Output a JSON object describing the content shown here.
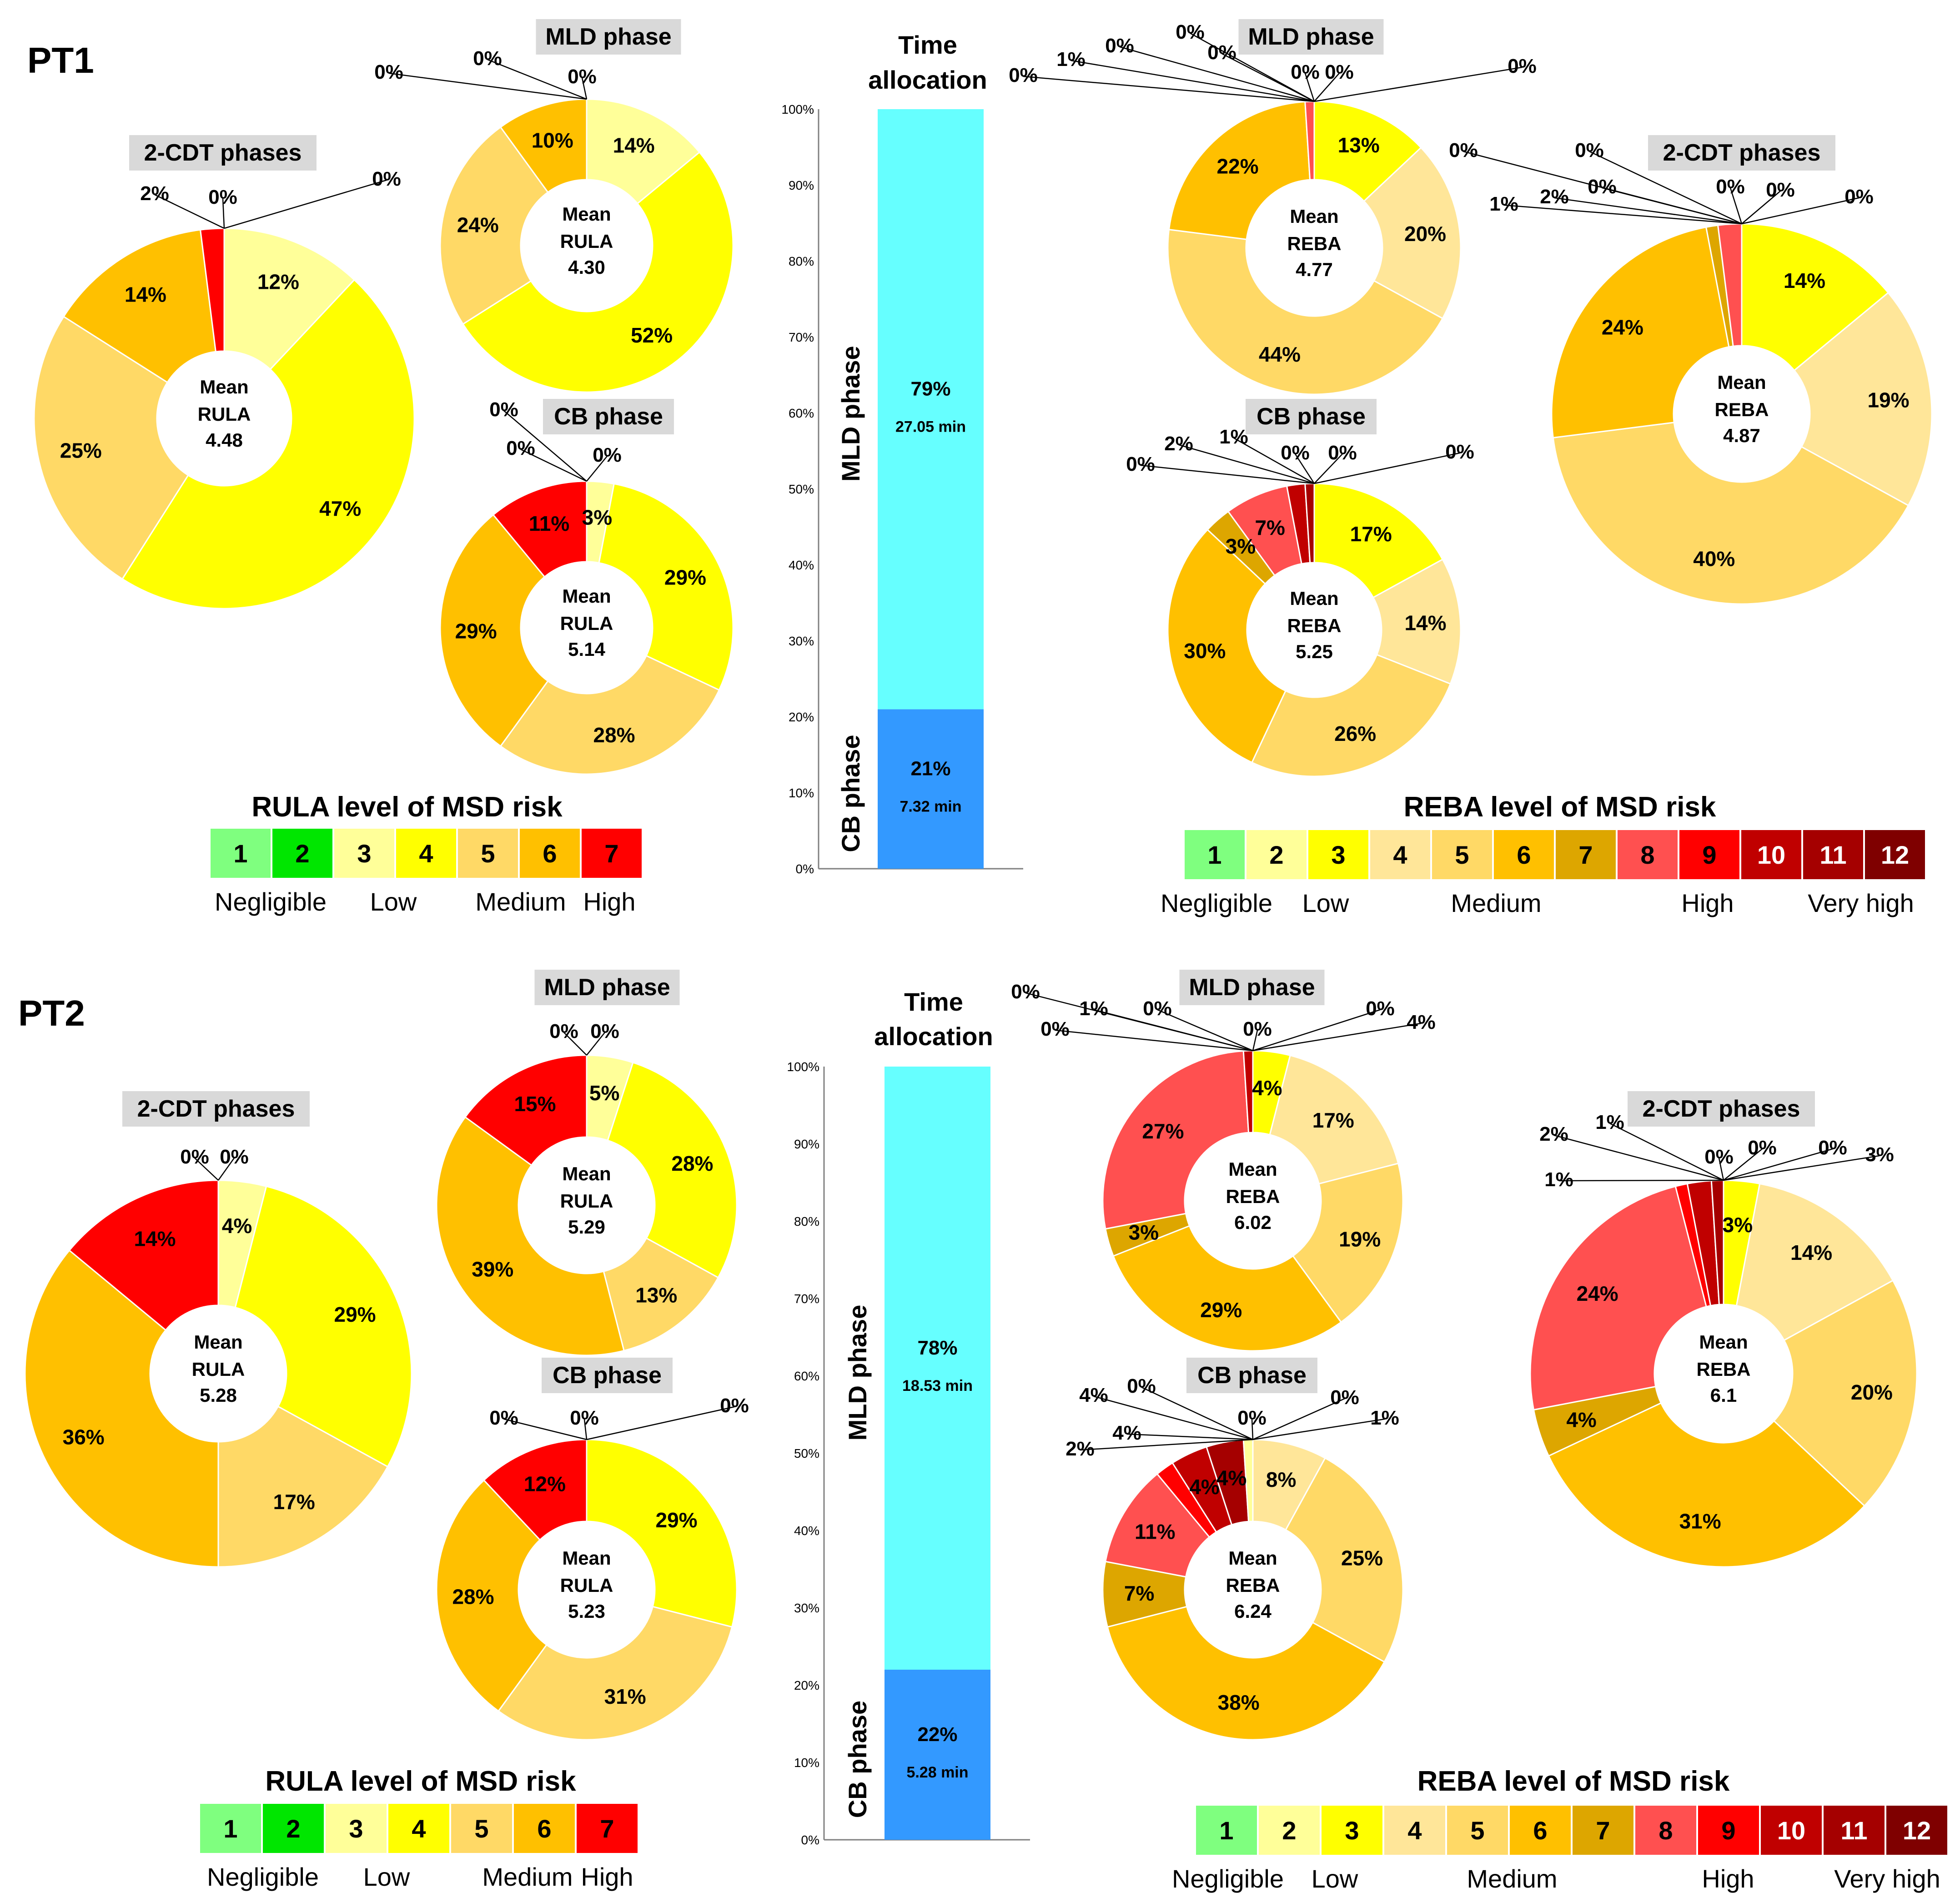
{
  "panels": [
    {
      "key": "pt1",
      "label": "PT1"
    },
    {
      "key": "pt2",
      "label": "PT2"
    }
  ],
  "colors": {
    "rula": {
      "1": "#7fff7f",
      "2": "#00e600",
      "3": "#ffff99",
      "4": "#ffff00",
      "5": "#ffd966",
      "6": "#ffc000",
      "7": "#ff0000"
    },
    "reba": {
      "1": "#7fff7f",
      "2": "#ffff99",
      "3": "#ffff00",
      "4": "#ffe699",
      "5": "#ffd966",
      "6": "#ffc000",
      "7": "#dda600",
      "8": "#ff5050",
      "9": "#ff0000",
      "10": "#c00000",
      "11": "#a50000",
      "12": "#7f0000"
    },
    "mld_bar": "#66ffff",
    "cb_bar": "#3399ff",
    "title_box": "#d9d9d9"
  },
  "legends": {
    "rula": {
      "title": "RULA level of MSD risk",
      "levels": [
        "1",
        "2",
        "3",
        "4",
        "5",
        "6",
        "7"
      ],
      "categories": [
        "Negligible",
        "Low",
        "Medium",
        "High"
      ]
    },
    "reba": {
      "title": "REBA level of MSD risk",
      "levels": [
        "1",
        "2",
        "3",
        "4",
        "5",
        "6",
        "7",
        "8",
        "9",
        "10",
        "11",
        "12"
      ],
      "categories": [
        "Negligible",
        "Low",
        "Medium",
        "High",
        "Very high"
      ]
    }
  },
  "time_allocation": {
    "title_line1": "Time",
    "title_line2": "allocation",
    "ticks": [
      "0%",
      "10%",
      "20%",
      "30%",
      "40%",
      "50%",
      "60%",
      "70%",
      "80%",
      "90%",
      "100%"
    ],
    "mld_label": "MLD phase",
    "cb_label": "CB phase"
  },
  "chart_data": [
    {
      "id": "pt1-rula-2cdt",
      "type": "pie",
      "title": "2-CDT phases",
      "center": [
        "Mean",
        "RULA",
        "4.48"
      ],
      "slices": [
        {
          "level": "3",
          "value": 12,
          "label": "12%"
        },
        {
          "level": "4",
          "value": 47,
          "label": "47%"
        },
        {
          "level": "5",
          "value": 25,
          "label": "25%"
        },
        {
          "level": "6",
          "value": 14,
          "label": "14%"
        },
        {
          "level": "7",
          "value": 2,
          "label": "2%"
        },
        {
          "level": "1",
          "value": 0,
          "label": "0%"
        },
        {
          "level": "2",
          "value": 0,
          "label": "0%"
        }
      ]
    },
    {
      "id": "pt1-rula-mld",
      "type": "pie",
      "title": "MLD phase",
      "center": [
        "Mean",
        "RULA",
        "4.30"
      ],
      "slices": [
        {
          "level": "3",
          "value": 14,
          "label": "14%"
        },
        {
          "level": "4",
          "value": 52,
          "label": "52%"
        },
        {
          "level": "5",
          "value": 24,
          "label": "24%"
        },
        {
          "level": "6",
          "value": 10,
          "label": "10%"
        },
        {
          "level": "7",
          "value": 0,
          "label": "0%"
        },
        {
          "level": "1",
          "value": 0,
          "label": "0%"
        },
        {
          "level": "2",
          "value": 0,
          "label": "0%"
        }
      ]
    },
    {
      "id": "pt1-rula-cb",
      "type": "pie",
      "title": "CB phase",
      "center": [
        "Mean",
        "RULA",
        "5.14"
      ],
      "slices": [
        {
          "level": "3",
          "value": 3,
          "label": "3%"
        },
        {
          "level": "4",
          "value": 29,
          "label": "29%"
        },
        {
          "level": "5",
          "value": 28,
          "label": "28%"
        },
        {
          "level": "6",
          "value": 29,
          "label": "29%"
        },
        {
          "level": "7",
          "value": 11,
          "label": "11%"
        },
        {
          "level": "1",
          "value": 0,
          "label": "0%"
        },
        {
          "level": "2",
          "value": 0,
          "label": "0%"
        }
      ]
    },
    {
      "id": "pt1-time",
      "type": "bar",
      "stacked": true,
      "ylim": [
        0,
        100
      ],
      "segments": [
        {
          "name": "CB phase",
          "value": 21,
          "label": "21%",
          "duration": "7.32 min"
        },
        {
          "name": "MLD phase",
          "value": 79,
          "label": "79%",
          "duration": "27.05 min"
        }
      ]
    },
    {
      "id": "pt1-reba-mld",
      "type": "pie",
      "title": "MLD phase",
      "center": [
        "Mean",
        "REBA",
        "4.77"
      ],
      "slices": [
        {
          "level": "3",
          "value": 13,
          "label": "13%"
        },
        {
          "level": "4",
          "value": 20,
          "label": "20%"
        },
        {
          "level": "5",
          "value": 44,
          "label": "44%"
        },
        {
          "level": "6",
          "value": 22,
          "label": "22%"
        },
        {
          "level": "7",
          "value": 0,
          "label": "0%"
        },
        {
          "level": "8",
          "value": 1,
          "label": "1%"
        },
        {
          "level": "9",
          "value": 0,
          "label": "0%"
        },
        {
          "level": "10",
          "value": 0,
          "label": "0%"
        },
        {
          "level": "11",
          "value": 0,
          "label": "0%"
        },
        {
          "level": "12",
          "value": 0,
          "label": "0%"
        },
        {
          "level": "1",
          "value": 0,
          "label": "0%"
        },
        {
          "level": "2",
          "value": 0,
          "label": "0%"
        }
      ]
    },
    {
      "id": "pt1-reba-cb",
      "type": "pie",
      "title": "CB phase",
      "center": [
        "Mean",
        "REBA",
        "5.25"
      ],
      "slices": [
        {
          "level": "3",
          "value": 17,
          "label": "17%"
        },
        {
          "level": "4",
          "value": 14,
          "label": "14%"
        },
        {
          "level": "5",
          "value": 26,
          "label": "26%"
        },
        {
          "level": "6",
          "value": 30,
          "label": "30%"
        },
        {
          "level": "7",
          "value": 3,
          "label": "3%"
        },
        {
          "level": "8",
          "value": 7,
          "label": "7%"
        },
        {
          "level": "9",
          "value": 0,
          "label": "0%"
        },
        {
          "level": "10",
          "value": 2,
          "label": "2%"
        },
        {
          "level": "11",
          "value": 1,
          "label": "1%"
        },
        {
          "level": "12",
          "value": 0,
          "label": "0%"
        },
        {
          "level": "1",
          "value": 0,
          "label": "0%"
        },
        {
          "level": "2",
          "value": 0,
          "label": "0%"
        }
      ]
    },
    {
      "id": "pt1-reba-2cdt",
      "type": "pie",
      "title": "2-CDT phases",
      "center": [
        "Mean",
        "REBA",
        "4.87"
      ],
      "slices": [
        {
          "level": "3",
          "value": 14,
          "label": "14%"
        },
        {
          "level": "4",
          "value": 19,
          "label": "19%"
        },
        {
          "level": "5",
          "value": 40,
          "label": "40%"
        },
        {
          "level": "6",
          "value": 24,
          "label": "24%"
        },
        {
          "level": "7",
          "value": 1,
          "label": "1%"
        },
        {
          "level": "8",
          "value": 2,
          "label": "2%"
        },
        {
          "level": "9",
          "value": 0,
          "label": "0%"
        },
        {
          "level": "10",
          "value": 0,
          "label": "0%"
        },
        {
          "level": "11",
          "value": 0,
          "label": "0%"
        },
        {
          "level": "12",
          "value": 0,
          "label": "0%"
        },
        {
          "level": "1",
          "value": 0,
          "label": "0%"
        },
        {
          "level": "2",
          "value": 0,
          "label": "0%"
        }
      ]
    },
    {
      "id": "pt2-rula-2cdt",
      "type": "pie",
      "title": "2-CDT phases",
      "center": [
        "Mean",
        "RULA",
        "5.28"
      ],
      "slices": [
        {
          "level": "3",
          "value": 4,
          "label": "4%"
        },
        {
          "level": "4",
          "value": 29,
          "label": "29%"
        },
        {
          "level": "5",
          "value": 17,
          "label": "17%"
        },
        {
          "level": "6",
          "value": 36,
          "label": "36%"
        },
        {
          "level": "7",
          "value": 14,
          "label": "14%"
        },
        {
          "level": "1",
          "value": 0,
          "label": "0%"
        },
        {
          "level": "2",
          "value": 0,
          "label": "0%"
        }
      ]
    },
    {
      "id": "pt2-rula-mld",
      "type": "pie",
      "title": "MLD phase",
      "center": [
        "Mean",
        "RULA",
        "5.29"
      ],
      "slices": [
        {
          "level": "3",
          "value": 5,
          "label": "5%"
        },
        {
          "level": "4",
          "value": 28,
          "label": "28%"
        },
        {
          "level": "5",
          "value": 13,
          "label": "13%"
        },
        {
          "level": "6",
          "value": 39,
          "label": "39%"
        },
        {
          "level": "7",
          "value": 15,
          "label": "15%"
        },
        {
          "level": "1",
          "value": 0,
          "label": "0%"
        },
        {
          "level": "2",
          "value": 0,
          "label": "0%"
        }
      ]
    },
    {
      "id": "pt2-rula-cb",
      "type": "pie",
      "title": "CB phase",
      "center": [
        "Mean",
        "RULA",
        "5.23"
      ],
      "slices": [
        {
          "level": "3",
          "value": 0,
          "label": "0%"
        },
        {
          "level": "4",
          "value": 29,
          "label": "29%"
        },
        {
          "level": "5",
          "value": 31,
          "label": "31%"
        },
        {
          "level": "6",
          "value": 28,
          "label": "28%"
        },
        {
          "level": "7",
          "value": 12,
          "label": "12%"
        },
        {
          "level": "1",
          "value": 0,
          "label": "0%"
        },
        {
          "level": "2",
          "value": 0,
          "label": "0%"
        }
      ]
    },
    {
      "id": "pt2-time",
      "type": "bar",
      "stacked": true,
      "ylim": [
        0,
        100
      ],
      "segments": [
        {
          "name": "CB phase",
          "value": 22,
          "label": "22%",
          "duration": "5.28 min"
        },
        {
          "name": "MLD phase",
          "value": 78,
          "label": "78%",
          "duration": "18.53 min"
        }
      ]
    },
    {
      "id": "pt2-reba-mld",
      "type": "pie",
      "title": "MLD phase",
      "center": [
        "Mean",
        "REBA",
        "6.02"
      ],
      "slices": [
        {
          "level": "2",
          "value": 0,
          "label": "0%"
        },
        {
          "level": "3",
          "value": 4,
          "label": "4%"
        },
        {
          "level": "4",
          "value": 17,
          "label": "17%"
        },
        {
          "level": "5",
          "value": 19,
          "label": "19%"
        },
        {
          "level": "6",
          "value": 29,
          "label": "29%"
        },
        {
          "level": "7",
          "value": 3,
          "label": "3%"
        },
        {
          "level": "8",
          "value": 27,
          "label": "27%"
        },
        {
          "level": "9",
          "value": 0,
          "label": "0%"
        },
        {
          "level": "10",
          "value": 1,
          "label": "1%"
        },
        {
          "level": "11",
          "value": 0,
          "label": "0%"
        },
        {
          "level": "12",
          "value": 0,
          "label": "0%"
        },
        {
          "level": "1",
          "value": 0,
          "label": "0%"
        }
      ]
    },
    {
      "id": "pt2-reba-cb",
      "type": "pie",
      "title": "CB phase",
      "center": [
        "Mean",
        "REBA",
        "6.24"
      ],
      "slices": [
        {
          "level": "3",
          "value": 0,
          "label": "0%"
        },
        {
          "level": "4",
          "value": 8,
          "label": "8%"
        },
        {
          "level": "5",
          "value": 25,
          "label": "25%"
        },
        {
          "level": "6",
          "value": 38,
          "label": "38%"
        },
        {
          "level": "7",
          "value": 7,
          "label": "7%"
        },
        {
          "level": "8",
          "value": 11,
          "label": "11%"
        },
        {
          "level": "9",
          "value": 2,
          "label": "2%"
        },
        {
          "level": "10",
          "value": 4,
          "label": "4%"
        },
        {
          "level": "11",
          "value": 4,
          "label": "4%"
        },
        {
          "level": "12",
          "value": 0,
          "label": "0%"
        },
        {
          "level": "1",
          "value": 0,
          "label": "0%"
        },
        {
          "level": "2",
          "value": 1,
          "label": "1%"
        }
      ]
    },
    {
      "id": "pt2-reba-2cdt",
      "type": "pie",
      "title": "2-CDT phases",
      "center": [
        "Mean",
        "REBA",
        "6.1"
      ],
      "slices": [
        {
          "level": "3",
          "value": 3,
          "label": "3%"
        },
        {
          "level": "4",
          "value": 14,
          "label": "14%"
        },
        {
          "level": "5",
          "value": 20,
          "label": "20%"
        },
        {
          "level": "6",
          "value": 31,
          "label": "31%"
        },
        {
          "level": "7",
          "value": 4,
          "label": "4%"
        },
        {
          "level": "8",
          "value": 24,
          "label": "24%"
        },
        {
          "level": "9",
          "value": 1,
          "label": "1%"
        },
        {
          "level": "10",
          "value": 2,
          "label": "2%"
        },
        {
          "level": "11",
          "value": 1,
          "label": "1%"
        },
        {
          "level": "12",
          "value": 0,
          "label": "0%"
        },
        {
          "level": "1",
          "value": 0,
          "label": "0%"
        },
        {
          "level": "2",
          "value": 0,
          "label": "0%"
        }
      ]
    }
  ]
}
